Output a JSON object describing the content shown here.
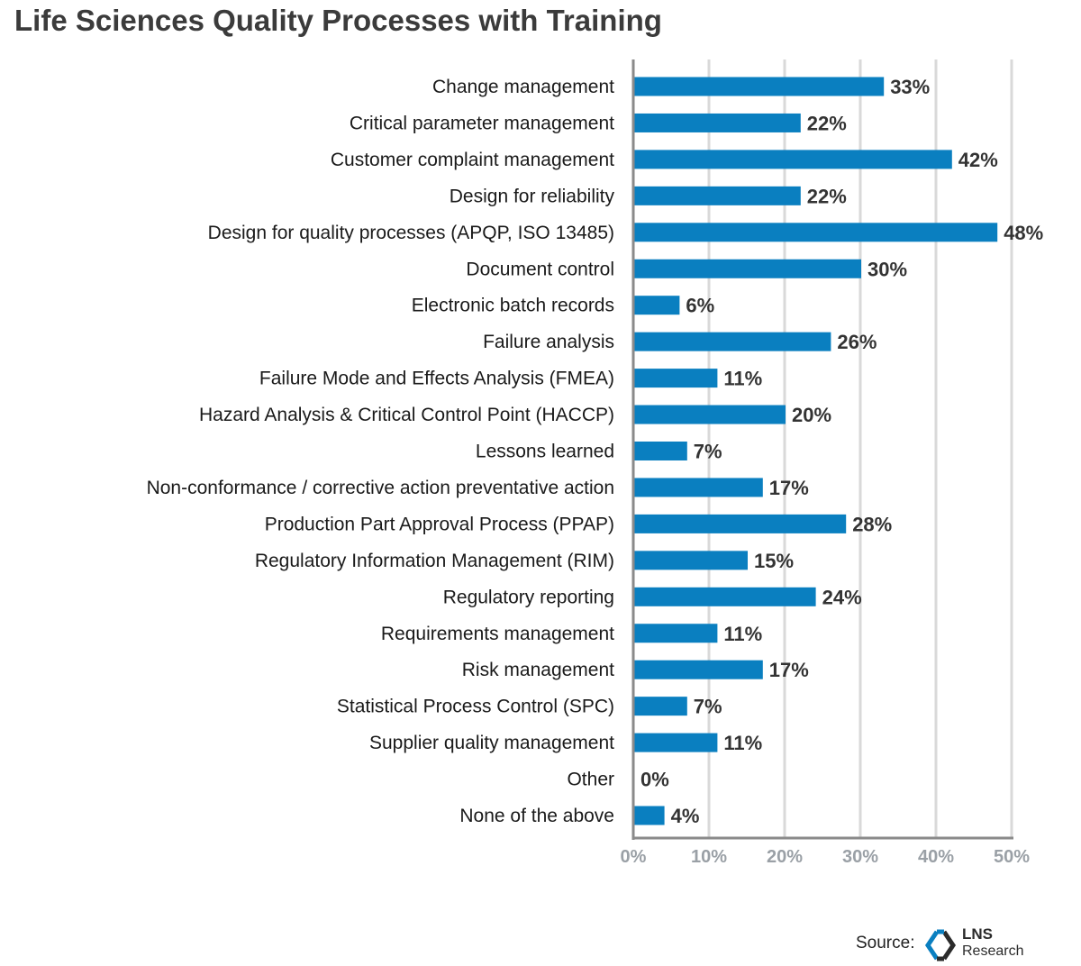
{
  "title": "Life Sciences Quality Processes with Training",
  "source": {
    "label": "Source:",
    "logo_line1": "LNS",
    "logo_line2": "Research"
  },
  "colors": {
    "bar": "#0a7fc0",
    "grid": "#d9d9d9",
    "axis": "#8a8a8a",
    "logo_blue": "#0a7fc0",
    "logo_dark": "#2b2b2b"
  },
  "chart_data": {
    "type": "bar",
    "orientation": "horizontal",
    "categories": [
      "Change management",
      "Critical parameter management",
      "Customer complaint management",
      "Design for reliability",
      "Design for quality processes (APQP, ISO 13485)",
      "Document control",
      "Electronic batch records",
      "Failure analysis",
      "Failure Mode and Effects Analysis (FMEA)",
      "Hazard Analysis & Critical Control Point (HACCP)",
      "Lessons learned",
      "Non-conformance / corrective action preventative action",
      "Production Part Approval Process (PPAP)",
      "Regulatory Information Management (RIM)",
      "Regulatory reporting",
      "Requirements management",
      "Risk management",
      "Statistical Process Control (SPC)",
      "Supplier quality management",
      "Other",
      "None of the above"
    ],
    "values": [
      33,
      22,
      42,
      22,
      48,
      30,
      6,
      26,
      11,
      20,
      7,
      17,
      28,
      15,
      24,
      11,
      17,
      7,
      11,
      0,
      4
    ],
    "value_labels": [
      "33%",
      "22%",
      "42%",
      "22%",
      "48%",
      "30%",
      "6%",
      "26%",
      "11%",
      "20%",
      "7%",
      "17%",
      "28%",
      "15%",
      "24%",
      "11%",
      "17%",
      "7%",
      "11%",
      "0%",
      "4%"
    ],
    "xlim": [
      0,
      50
    ],
    "xticks": [
      0,
      10,
      20,
      30,
      40,
      50
    ],
    "xtick_labels": [
      "0%",
      "10%",
      "20%",
      "30%",
      "40%",
      "50%"
    ],
    "grid": true,
    "legend": "none"
  }
}
